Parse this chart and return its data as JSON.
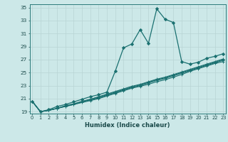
{
  "xlabel": "Humidex (Indice chaleur)",
  "bg_color": "#cce8e8",
  "grid_color": "#b8d4d4",
  "line_color": "#1a7070",
  "xlim_min": -0.3,
  "xlim_max": 23.3,
  "ylim_min": 18.7,
  "ylim_max": 35.5,
  "yticks": [
    19,
    21,
    23,
    25,
    27,
    29,
    31,
    33,
    35
  ],
  "xticks": [
    0,
    1,
    2,
    3,
    4,
    5,
    6,
    7,
    8,
    9,
    10,
    11,
    12,
    13,
    14,
    15,
    16,
    17,
    18,
    19,
    20,
    21,
    22,
    23
  ],
  "main_curve": [
    20.6,
    19.0,
    19.3,
    19.8,
    20.1,
    20.5,
    20.9,
    21.3,
    21.6,
    22.0,
    25.2,
    28.8,
    29.4,
    31.6,
    29.5,
    34.8,
    33.2,
    32.7,
    26.7,
    26.3,
    26.6,
    27.2,
    27.5,
    27.9
  ],
  "linear_curves": [
    [
      20.6,
      19.0,
      19.2,
      19.5,
      19.8,
      20.1,
      20.4,
      20.7,
      21.0,
      21.4,
      21.8,
      22.2,
      22.6,
      22.9,
      23.2,
      23.6,
      23.9,
      24.3,
      24.7,
      25.2,
      25.6,
      26.0,
      26.4,
      26.7
    ],
    [
      20.6,
      19.0,
      19.2,
      19.5,
      19.8,
      20.1,
      20.5,
      20.8,
      21.1,
      21.5,
      21.9,
      22.3,
      22.7,
      23.0,
      23.4,
      23.8,
      24.1,
      24.5,
      24.9,
      25.3,
      25.7,
      26.1,
      26.5,
      26.9
    ],
    [
      20.6,
      19.0,
      19.2,
      19.5,
      19.9,
      20.2,
      20.5,
      20.9,
      21.2,
      21.6,
      22.0,
      22.4,
      22.8,
      23.1,
      23.5,
      23.9,
      24.2,
      24.6,
      25.0,
      25.4,
      25.8,
      26.2,
      26.6,
      27.0
    ],
    [
      20.6,
      19.0,
      19.2,
      19.5,
      19.9,
      20.2,
      20.6,
      20.9,
      21.3,
      21.7,
      22.1,
      22.5,
      22.9,
      23.2,
      23.6,
      24.0,
      24.3,
      24.7,
      25.1,
      25.5,
      25.9,
      26.3,
      26.7,
      27.1
    ]
  ]
}
